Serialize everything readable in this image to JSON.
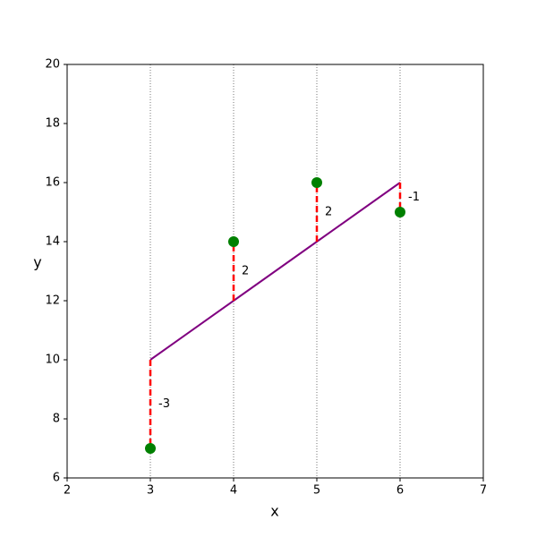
{
  "chart_data": {
    "type": "scatter",
    "x": [
      3,
      4,
      5,
      6
    ],
    "values": [
      7,
      14,
      16,
      15
    ],
    "color": "green",
    "fit": {
      "values": [
        10,
        12,
        14,
        16
      ],
      "color": "purple"
    },
    "residuals": {
      "values": [
        -3,
        2,
        2,
        -1
      ],
      "color": "red",
      "label_color": "#b22222"
    },
    "xlabel": "x",
    "ylabel": "y",
    "xlim": [
      2,
      7
    ],
    "ylim": [
      6,
      20
    ],
    "xticks": [
      2,
      3,
      4,
      5,
      6,
      7
    ],
    "yticks": [
      6,
      8,
      10,
      12,
      14,
      16,
      18,
      20
    ],
    "grid": "x"
  }
}
